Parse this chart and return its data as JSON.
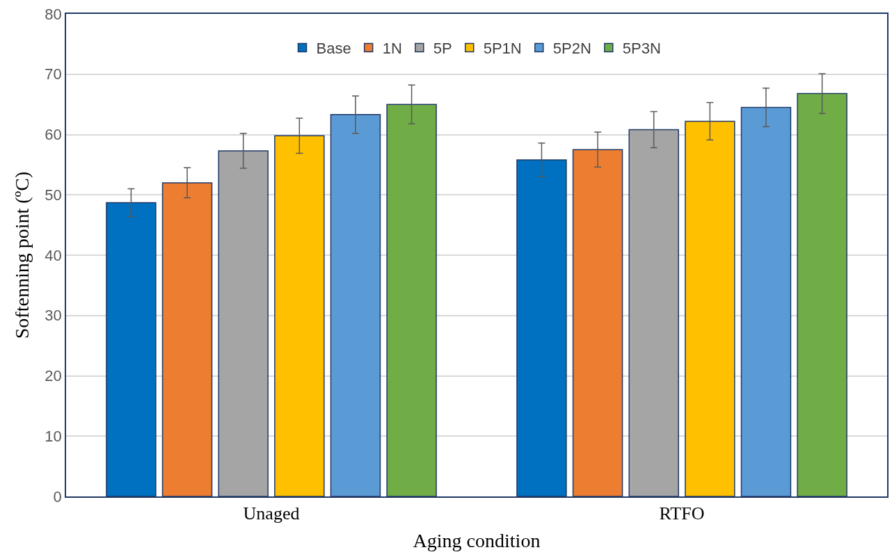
{
  "chart_data": {
    "type": "bar",
    "xlabel": "Aging condition",
    "ylabel": "Softenning point (ºC)",
    "categories": [
      "Unaged",
      "RTFO"
    ],
    "series": [
      {
        "name": "Base",
        "color": "#0070c0",
        "values": [
          48.7,
          55.8
        ],
        "errors": [
          2.3,
          2.8
        ]
      },
      {
        "name": "1N",
        "color": "#ed7d31",
        "values": [
          52.0,
          57.5
        ],
        "errors": [
          2.5,
          2.9
        ]
      },
      {
        "name": "5P",
        "color": "#a5a5a5",
        "values": [
          57.3,
          60.8
        ],
        "errors": [
          2.9,
          3.0
        ]
      },
      {
        "name": "5P1N",
        "color": "#ffc000",
        "values": [
          59.8,
          62.2
        ],
        "errors": [
          2.9,
          3.1
        ]
      },
      {
        "name": "5P2N",
        "color": "#5b9bd5",
        "values": [
          63.3,
          64.5
        ],
        "errors": [
          3.1,
          3.2
        ]
      },
      {
        "name": "5P3N",
        "color": "#70ad47",
        "values": [
          65.0,
          66.8
        ],
        "errors": [
          3.2,
          3.3
        ]
      }
    ],
    "ylim": [
      0,
      80
    ],
    "yticks": [
      0,
      10,
      20,
      30,
      40,
      50,
      60,
      70,
      80
    ],
    "grid": "y",
    "legend": "top"
  }
}
